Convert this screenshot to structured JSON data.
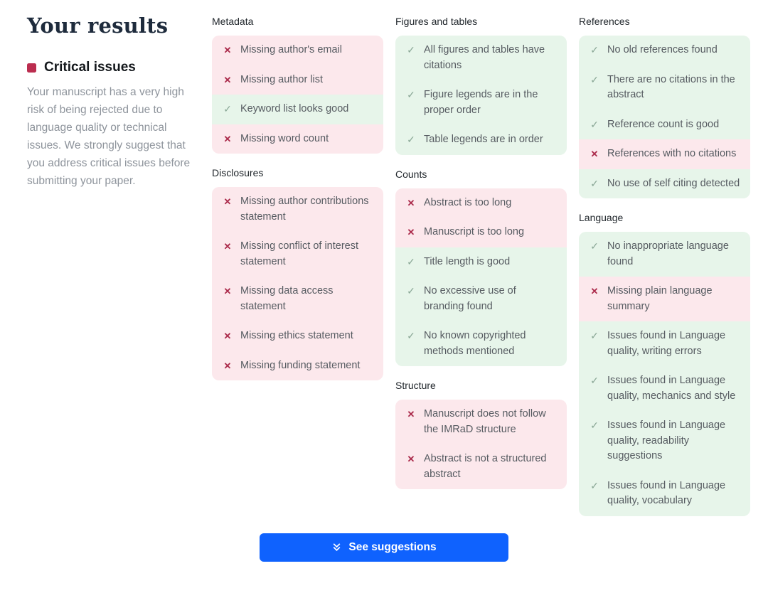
{
  "header": {
    "title": "Your results"
  },
  "summary": {
    "heading": "Critical issues",
    "body": "Your manuscript has a very high risk of being rejected due to language quality or technical issues. We strongly suggest that you address critical issues before submitting your paper."
  },
  "colors": {
    "accent_blue": "#0f62fe",
    "critical_marker_red": "#bb2d4f",
    "fail_row_bg": "#fce8ec",
    "pass_row_bg": "#e7f5ea",
    "fail_icon": "#ab2b4b",
    "pass_icon": "#8aa796"
  },
  "columns": [
    [
      {
        "title": "Metadata",
        "items": [
          {
            "status": "fail",
            "text": "Missing author's email"
          },
          {
            "status": "fail",
            "text": "Missing author list"
          },
          {
            "status": "pass",
            "text": "Keyword list looks good"
          },
          {
            "status": "fail",
            "text": "Missing word count"
          }
        ]
      },
      {
        "title": "Disclosures",
        "items": [
          {
            "status": "fail",
            "text": "Missing author contributions statement"
          },
          {
            "status": "fail",
            "text": "Missing conflict of interest statement"
          },
          {
            "status": "fail",
            "text": "Missing data access statement"
          },
          {
            "status": "fail",
            "text": "Missing ethics statement"
          },
          {
            "status": "fail",
            "text": "Missing funding statement"
          }
        ]
      }
    ],
    [
      {
        "title": "Figures and tables",
        "items": [
          {
            "status": "pass",
            "text": "All figures and tables have citations"
          },
          {
            "status": "pass",
            "text": "Figure legends are in the proper order"
          },
          {
            "status": "pass",
            "text": "Table legends are in order"
          }
        ]
      },
      {
        "title": "Counts",
        "items": [
          {
            "status": "fail",
            "text": "Abstract is too long"
          },
          {
            "status": "fail",
            "text": "Manuscript is too long"
          },
          {
            "status": "pass",
            "text": "Title length is good"
          },
          {
            "status": "pass",
            "text": "No excessive use of branding found"
          },
          {
            "status": "pass",
            "text": "No known copyrighted methods mentioned"
          }
        ]
      },
      {
        "title": "Structure",
        "items": [
          {
            "status": "fail",
            "text": "Manuscript does not follow the IMRaD structure"
          },
          {
            "status": "fail",
            "text": "Abstract is not a structured abstract"
          }
        ]
      }
    ],
    [
      {
        "title": "References",
        "items": [
          {
            "status": "pass",
            "text": "No old references found"
          },
          {
            "status": "pass",
            "text": "There are no citations in the abstract"
          },
          {
            "status": "pass",
            "text": "Reference count is good"
          },
          {
            "status": "fail",
            "text": "References with no citations"
          },
          {
            "status": "pass",
            "text": "No use of self citing detected"
          }
        ]
      },
      {
        "title": "Language",
        "items": [
          {
            "status": "pass",
            "text": "No inappropriate language found"
          },
          {
            "status": "fail",
            "text": "Missing plain language summary"
          },
          {
            "status": "pass",
            "text": "Issues found in Language quality, writing errors"
          },
          {
            "status": "pass",
            "text": "Issues found in Language quality, mechanics and style"
          },
          {
            "status": "pass",
            "text": "Issues found in Language quality, readability suggestions"
          },
          {
            "status": "pass",
            "text": "Issues found in Language quality, vocabulary"
          }
        ]
      }
    ]
  ],
  "footer": {
    "see_suggestions_label": "See suggestions",
    "see_suggestions_icon": "double-chevron-down-icon"
  }
}
